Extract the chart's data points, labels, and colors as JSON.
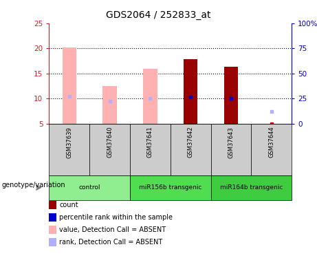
{
  "title": "GDS2064 / 252833_at",
  "samples": [
    "GSM37639",
    "GSM37640",
    "GSM37641",
    "GSM37642",
    "GSM37643",
    "GSM37644"
  ],
  "groups": [
    {
      "label": "control",
      "indices": [
        0,
        1
      ],
      "color": "#90ee90"
    },
    {
      "label": "miR156b transgenic",
      "indices": [
        2,
        3
      ],
      "color": "#50dd50"
    },
    {
      "label": "miR164b transgenic",
      "indices": [
        4,
        5
      ],
      "color": "#40cc40"
    }
  ],
  "bar_values": [
    20.2,
    12.5,
    16.0,
    17.8,
    16.3,
    null
  ],
  "bar_colors": [
    "#ffb0b0",
    "#ffb0b0",
    "#ffb0b0",
    "#990000",
    "#990000",
    null
  ],
  "rank_values": [
    10.5,
    9.5,
    10.0,
    10.3,
    10.0,
    7.5
  ],
  "rank_colors": [
    "#b0b0ff",
    "#b0b0ff",
    "#b0b0ff",
    "#0000cc",
    "#0000cc",
    "#b0b0ff"
  ],
  "tiny_red_value": 5.05,
  "tiny_red_index": 5,
  "ylim_left": [
    5,
    25
  ],
  "ylim_right": [
    0,
    100
  ],
  "yticks_left": [
    5,
    10,
    15,
    20,
    25
  ],
  "yticks_right": [
    0,
    25,
    50,
    75,
    100
  ],
  "ytick_labels_right": [
    "0",
    "25",
    "50",
    "75",
    "100%"
  ],
  "grid_values": [
    10,
    15,
    20
  ],
  "bar_bottom": 5.0,
  "bar_width": 0.35,
  "left_axis_color": "#cc2222",
  "right_axis_color": "#0000bb",
  "sample_box_color": "#cccccc",
  "legend": [
    {
      "color": "#990000",
      "label": "count"
    },
    {
      "color": "#0000cc",
      "label": "percentile rank within the sample"
    },
    {
      "color": "#ffb0b0",
      "label": "value, Detection Call = ABSENT"
    },
    {
      "color": "#b0b0ff",
      "label": "rank, Detection Call = ABSENT"
    }
  ],
  "genotype_label": "genotype/variation"
}
